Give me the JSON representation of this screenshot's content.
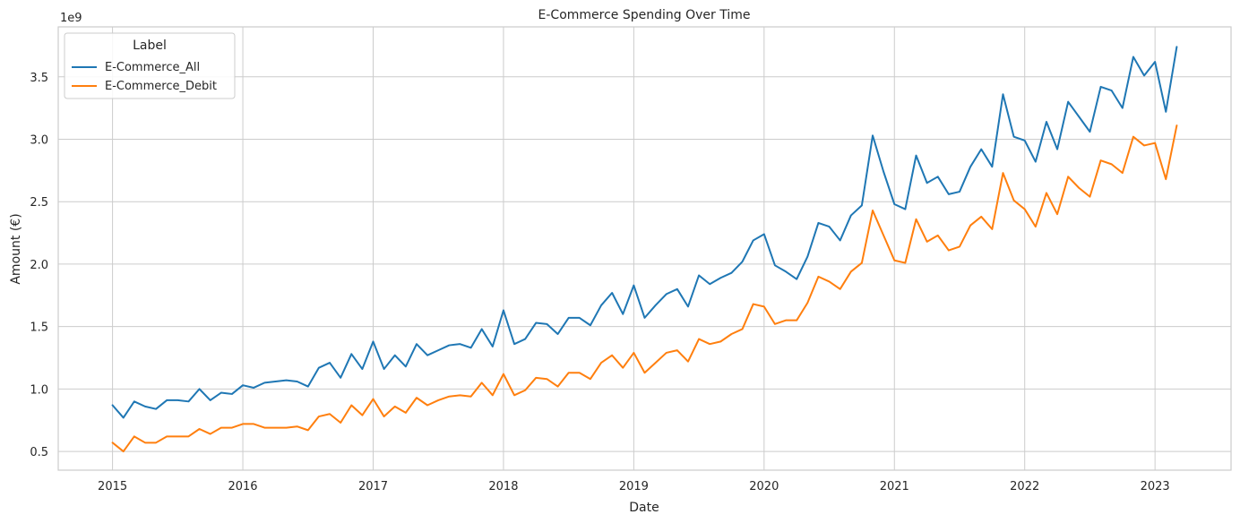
{
  "chart_data": {
    "type": "line",
    "title": "E-Commerce Spending Over Time",
    "xlabel": "Date",
    "ylabel": "Amount (€)",
    "y_multiplier_label": "1e9",
    "y_scale": 1000000000,
    "x_start": "2015-01",
    "x_frequency": "monthly",
    "xlim": [
      "2014-08",
      "2023-08"
    ],
    "ylim": [
      0.35,
      3.9
    ],
    "x_ticks": [
      "2015",
      "2016",
      "2017",
      "2018",
      "2019",
      "2020",
      "2021",
      "2022",
      "2023"
    ],
    "y_ticks": [
      "0.5",
      "1.0",
      "1.5",
      "2.0",
      "2.5",
      "3.0",
      "3.5"
    ],
    "grid": true,
    "legend": {
      "title": "Label",
      "placement": "top-left"
    },
    "series": [
      {
        "name": "E-Commerce_All",
        "color": "#1f77b4",
        "values": [
          0.87,
          0.77,
          0.9,
          0.86,
          0.84,
          0.91,
          0.91,
          0.9,
          1.0,
          0.91,
          0.97,
          0.96,
          1.03,
          1.01,
          1.05,
          1.06,
          1.07,
          1.06,
          1.02,
          1.17,
          1.21,
          1.09,
          1.28,
          1.16,
          1.38,
          1.16,
          1.27,
          1.18,
          1.36,
          1.27,
          1.31,
          1.35,
          1.36,
          1.33,
          1.48,
          1.34,
          1.63,
          1.36,
          1.4,
          1.53,
          1.52,
          1.44,
          1.57,
          1.57,
          1.51,
          1.67,
          1.77,
          1.6,
          1.83,
          1.57,
          1.67,
          1.76,
          1.8,
          1.66,
          1.91,
          1.84,
          1.89,
          1.93,
          2.02,
          2.19,
          2.24,
          1.99,
          1.94,
          1.88,
          2.06,
          2.33,
          2.3,
          2.19,
          2.39,
          2.47,
          3.03,
          2.74,
          2.48,
          2.44,
          2.87,
          2.65,
          2.7,
          2.56,
          2.58,
          2.78,
          2.92,
          2.78,
          3.36,
          3.02,
          2.99,
          2.82,
          3.14,
          2.92,
          3.3,
          3.18,
          3.06,
          3.42,
          3.39,
          3.25,
          3.66,
          3.51,
          3.62,
          3.22,
          3.74
        ]
      },
      {
        "name": "E-Commerce_Debit",
        "color": "#ff7f0e",
        "values": [
          0.57,
          0.5,
          0.62,
          0.57,
          0.57,
          0.62,
          0.62,
          0.62,
          0.68,
          0.64,
          0.69,
          0.69,
          0.72,
          0.72,
          0.69,
          0.69,
          0.69,
          0.7,
          0.67,
          0.78,
          0.8,
          0.73,
          0.87,
          0.79,
          0.92,
          0.78,
          0.86,
          0.81,
          0.93,
          0.87,
          0.91,
          0.94,
          0.95,
          0.94,
          1.05,
          0.95,
          1.12,
          0.95,
          0.99,
          1.09,
          1.08,
          1.02,
          1.13,
          1.13,
          1.08,
          1.21,
          1.27,
          1.17,
          1.29,
          1.13,
          1.21,
          1.29,
          1.31,
          1.22,
          1.4,
          1.36,
          1.38,
          1.44,
          1.48,
          1.68,
          1.66,
          1.52,
          1.55,
          1.55,
          1.69,
          1.9,
          1.86,
          1.8,
          1.94,
          2.01,
          2.43,
          2.23,
          2.03,
          2.01,
          2.36,
          2.18,
          2.23,
          2.11,
          2.14,
          2.31,
          2.38,
          2.28,
          2.73,
          2.51,
          2.44,
          2.3,
          2.57,
          2.4,
          2.7,
          2.61,
          2.54,
          2.83,
          2.8,
          2.73,
          3.02,
          2.95,
          2.97,
          2.68,
          3.11
        ]
      }
    ]
  }
}
